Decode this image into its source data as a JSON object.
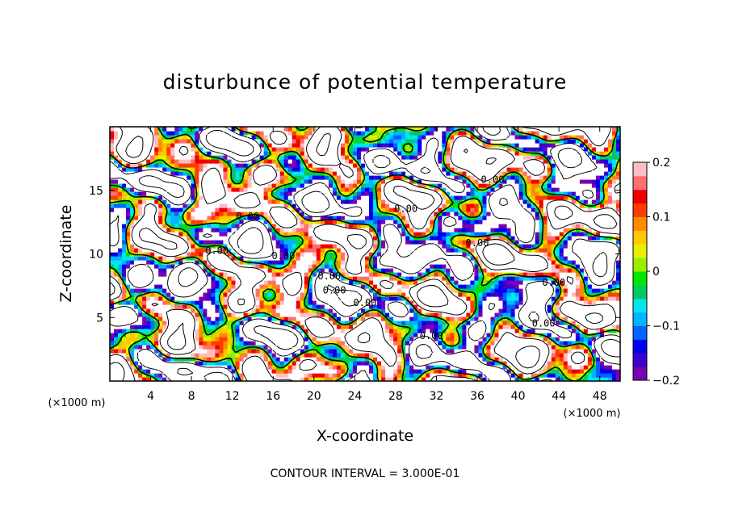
{
  "chart_data": {
    "type": "heatmap",
    "title": "disturbunce of potential temperature",
    "xlabel": "X-coordinate",
    "ylabel": "Z-coordinate",
    "x_unit_left": "(×1000 m)",
    "x_unit_right": "(×1000 m)",
    "xlim": [
      0,
      50
    ],
    "ylim": [
      0,
      20
    ],
    "x_ticks": [
      4,
      8,
      12,
      16,
      20,
      24,
      28,
      32,
      36,
      40,
      44,
      48
    ],
    "y_ticks": [
      5,
      10,
      15
    ],
    "colorbar": {
      "vmin": -0.2,
      "vmax": 0.2,
      "tick_values": [
        0.2,
        0.1,
        0,
        -0.1,
        -0.2
      ],
      "tick_labels": [
        "0.2",
        "0.1",
        "0",
        "−0.1",
        "−0.2"
      ],
      "colors": [
        "#7a00b4",
        "#3f00c8",
        "#0000f0",
        "#0064ff",
        "#00b4ff",
        "#00e6f0",
        "#00c864",
        "#00e600",
        "#96f000",
        "#e6f000",
        "#ffc800",
        "#ff8c00",
        "#ff3c00",
        "#f00000",
        "#ff6e6e",
        "#ffbebe"
      ]
    },
    "contour_interval_text": "CONTOUR INTERVAL = 3.000E-01",
    "contour_labels": [
      {
        "x": 13.5,
        "z": 12.7,
        "text": "0.00"
      },
      {
        "x": 10.5,
        "z": 10.0,
        "text": "0.00"
      },
      {
        "x": 17.0,
        "z": 9.6,
        "text": "0.00"
      },
      {
        "x": 21.5,
        "z": 8.0,
        "text": "0.00"
      },
      {
        "x": 22.0,
        "z": 6.9,
        "text": "0.00"
      },
      {
        "x": 25.0,
        "z": 5.9,
        "text": "0.00"
      },
      {
        "x": 29.0,
        "z": 13.3,
        "text": "0.00"
      },
      {
        "x": 37.5,
        "z": 15.6,
        "text": "0.00"
      },
      {
        "x": 36.0,
        "z": 10.6,
        "text": "0.00"
      },
      {
        "x": 43.5,
        "z": 7.5,
        "text": "0.00"
      },
      {
        "x": 42.5,
        "z": 4.3,
        "text": "0.00"
      },
      {
        "x": 31.5,
        "z": 3.3,
        "text": "0.00"
      }
    ]
  }
}
